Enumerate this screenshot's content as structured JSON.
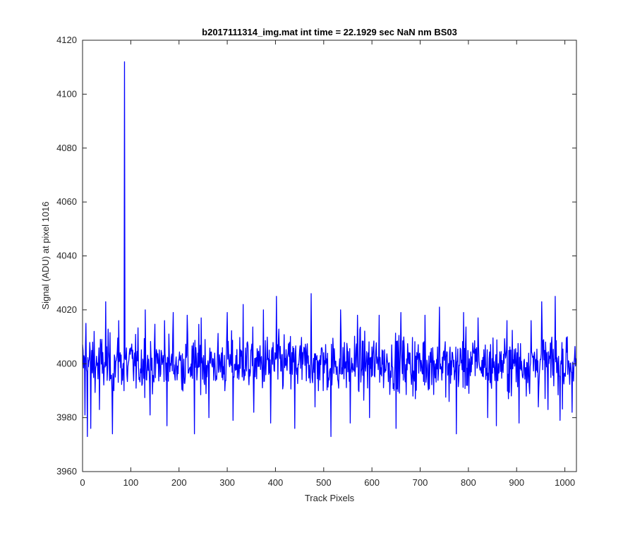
{
  "chart_data": {
    "type": "line",
    "title": "b2017111314_img.mat int time = 22.1929 sec  NaN nm BS03",
    "xlabel": "Track Pixels",
    "ylabel": "Signal (ADU) at pixel 1016",
    "xlim": [
      0,
      1024
    ],
    "ylim": [
      3960,
      4120
    ],
    "xticks": [
      0,
      100,
      200,
      300,
      400,
      500,
      600,
      700,
      800,
      900,
      1000
    ],
    "yticks": [
      3960,
      3980,
      4000,
      4020,
      4040,
      4060,
      4080,
      4100,
      4120
    ],
    "grid": false,
    "legend": "none",
    "series": [
      {
        "color": "#0000ff",
        "baseline": 4000,
        "spike": {
          "x": 87,
          "y": 4112
        },
        "highlights": [
          {
            "x": 5,
            "y": 3981
          },
          {
            "x": 7,
            "y": 4015
          },
          {
            "x": 10,
            "y": 3973
          },
          {
            "x": 17,
            "y": 3976
          },
          {
            "x": 24,
            "y": 4012
          },
          {
            "x": 35,
            "y": 3983
          },
          {
            "x": 48,
            "y": 4023
          },
          {
            "x": 62,
            "y": 3974
          },
          {
            "x": 75,
            "y": 4016
          },
          {
            "x": 92,
            "y": 3996
          },
          {
            "x": 130,
            "y": 4020
          },
          {
            "x": 140,
            "y": 3981
          },
          {
            "x": 170,
            "y": 4016
          },
          {
            "x": 175,
            "y": 3977
          },
          {
            "x": 188,
            "y": 4019
          },
          {
            "x": 217,
            "y": 4018
          },
          {
            "x": 232,
            "y": 3974
          },
          {
            "x": 246,
            "y": 4017
          },
          {
            "x": 262,
            "y": 3980
          },
          {
            "x": 300,
            "y": 4019
          },
          {
            "x": 312,
            "y": 3979
          },
          {
            "x": 333,
            "y": 4022
          },
          {
            "x": 355,
            "y": 3982
          },
          {
            "x": 375,
            "y": 4020
          },
          {
            "x": 390,
            "y": 3978
          },
          {
            "x": 402,
            "y": 4025
          },
          {
            "x": 440,
            "y": 3976
          },
          {
            "x": 474,
            "y": 4026
          },
          {
            "x": 482,
            "y": 3984
          },
          {
            "x": 515,
            "y": 3973
          },
          {
            "x": 535,
            "y": 4020
          },
          {
            "x": 555,
            "y": 3978
          },
          {
            "x": 570,
            "y": 4018
          },
          {
            "x": 595,
            "y": 3980
          },
          {
            "x": 615,
            "y": 4018
          },
          {
            "x": 650,
            "y": 3976
          },
          {
            "x": 660,
            "y": 4019
          },
          {
            "x": 690,
            "y": 3987
          },
          {
            "x": 710,
            "y": 4018
          },
          {
            "x": 740,
            "y": 4021
          },
          {
            "x": 760,
            "y": 3986
          },
          {
            "x": 775,
            "y": 3974
          },
          {
            "x": 790,
            "y": 4019
          },
          {
            "x": 820,
            "y": 4017
          },
          {
            "x": 840,
            "y": 3980
          },
          {
            "x": 858,
            "y": 3977
          },
          {
            "x": 880,
            "y": 4016
          },
          {
            "x": 905,
            "y": 3978
          },
          {
            "x": 930,
            "y": 4016
          },
          {
            "x": 945,
            "y": 3984
          },
          {
            "x": 952,
            "y": 4023
          },
          {
            "x": 965,
            "y": 3983
          },
          {
            "x": 980,
            "y": 4025
          },
          {
            "x": 990,
            "y": 3979
          },
          {
            "x": 1005,
            "y": 4010
          },
          {
            "x": 1015,
            "y": 3982
          },
          {
            "x": 1023,
            "y": 4002
          }
        ]
      }
    ]
  }
}
